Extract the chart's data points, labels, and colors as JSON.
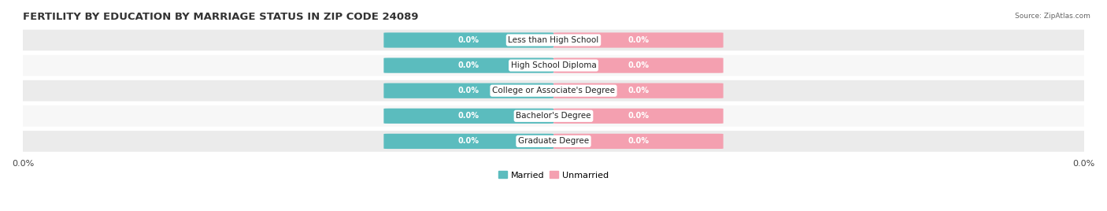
{
  "title": "FERTILITY BY EDUCATION BY MARRIAGE STATUS IN ZIP CODE 24089",
  "source": "Source: ZipAtlas.com",
  "categories": [
    "Less than High School",
    "High School Diploma",
    "College or Associate's Degree",
    "Bachelor's Degree",
    "Graduate Degree"
  ],
  "married_values": [
    0.0,
    0.0,
    0.0,
    0.0,
    0.0
  ],
  "unmarried_values": [
    0.0,
    0.0,
    0.0,
    0.0,
    0.0
  ],
  "married_color": "#5bbcbe",
  "unmarried_color": "#f4a0b0",
  "row_bg_color": "#ebebeb",
  "title_fontsize": 9.5,
  "label_fontsize": 7.5,
  "tick_fontsize": 8,
  "legend_married": "Married",
  "legend_unmarried": "Unmarried",
  "background_color": "#ffffff"
}
